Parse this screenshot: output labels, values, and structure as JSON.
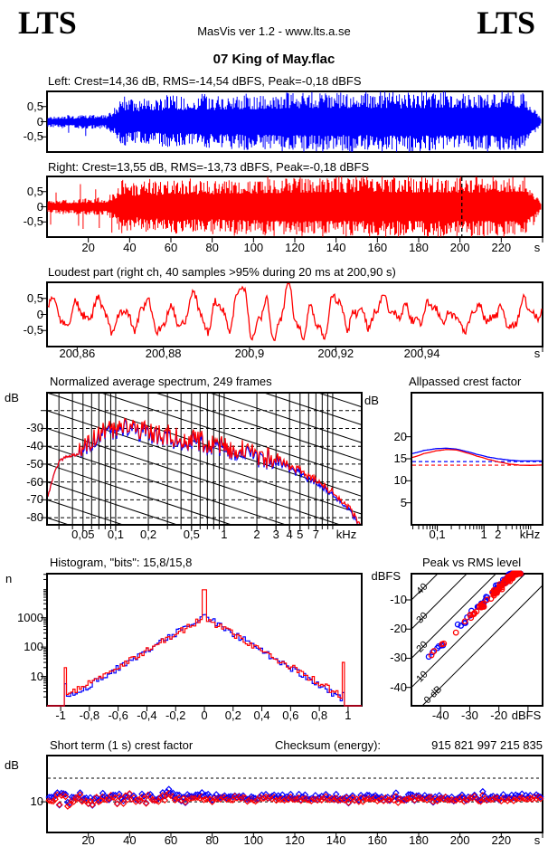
{
  "header": {
    "logo_left": "LTS",
    "logo_right": "LTS",
    "app_info": "MasVis ver 1.2 - www.lts.a.se"
  },
  "title": "07 King of May.flac",
  "colors": {
    "left_channel": "#0000ff",
    "right_channel": "#ff0000",
    "axis": "#000000",
    "background": "#ffffff"
  },
  "chart_data": [
    {
      "id": "wave_left",
      "type": "waveform",
      "channel": "left",
      "title": "Left: Crest=14,36 dB, RMS=-14,54 dBFS, Peak=-0,18 dBFS",
      "ylim": [
        -1,
        1
      ],
      "yticks": [
        [
          0.5,
          "0,5"
        ],
        [
          0,
          "0"
        ],
        [
          -0.5,
          "-0,5"
        ]
      ],
      "xlim_s": [
        0,
        240
      ],
      "envelope_t_step_s": 4,
      "envelope": [
        0.15,
        0.18,
        0.2,
        0.19,
        0.22,
        0.2,
        0.24,
        0.22,
        0.38,
        0.78,
        0.7,
        0.62,
        0.82,
        0.7,
        0.76,
        0.86,
        0.73,
        0.8,
        0.76,
        0.84,
        0.78,
        0.76,
        0.84,
        0.8,
        0.84,
        0.81,
        0.84,
        0.88,
        0.84,
        0.91,
        0.88,
        0.91,
        0.88,
        0.92,
        0.89,
        0.92,
        0.88,
        0.92,
        0.9,
        0.88,
        0.92,
        0.9,
        0.92,
        0.88,
        0.9,
        0.92,
        0.89,
        0.92,
        0.9,
        0.92,
        0.89,
        0.9,
        0.92,
        0.89,
        0.9,
        0.93,
        0.91,
        0.93,
        0.88,
        0.5,
        0.04
      ],
      "early_section_end_s": 33,
      "early_spike_p": 0.02,
      "early_spike_max": 0.6
    },
    {
      "id": "wave_right",
      "type": "waveform",
      "channel": "right",
      "title": "Right: Crest=13,55 dB, RMS=-13,73 dBFS, Peak=-0,18 dBFS",
      "ylim": [
        -1,
        1
      ],
      "yticks": [
        [
          0.5,
          "0,5"
        ],
        [
          0,
          "0"
        ],
        [
          -0.5,
          "-0,5"
        ]
      ],
      "xlim_s": [
        0,
        240
      ],
      "xticks": [
        [
          20,
          "20"
        ],
        [
          40,
          "40"
        ],
        [
          60,
          "60"
        ],
        [
          80,
          "80"
        ],
        [
          100,
          "100"
        ],
        [
          120,
          "120"
        ],
        [
          140,
          "140"
        ],
        [
          160,
          "160"
        ],
        [
          180,
          "180"
        ],
        [
          200,
          "200"
        ],
        [
          220,
          "220"
        ],
        [
          240,
          ""
        ]
      ],
      "x_unit_label": "s",
      "marker_time_s": 200.9,
      "envelope_t_step_s": 4,
      "envelope": [
        0.18,
        0.21,
        0.24,
        0.21,
        0.26,
        0.23,
        0.28,
        0.26,
        0.44,
        0.84,
        0.77,
        0.68,
        0.87,
        0.75,
        0.81,
        0.91,
        0.79,
        0.85,
        0.81,
        0.89,
        0.83,
        0.81,
        0.89,
        0.85,
        0.89,
        0.86,
        0.89,
        0.92,
        0.89,
        0.95,
        0.92,
        0.95,
        0.92,
        0.95,
        0.93,
        0.95,
        0.92,
        0.95,
        0.93,
        0.92,
        0.95,
        0.93,
        0.95,
        0.92,
        0.94,
        0.95,
        0.93,
        0.95,
        0.94,
        0.95,
        0.93,
        0.94,
        0.95,
        0.93,
        0.94,
        0.96,
        0.94,
        0.96,
        0.92,
        0.55,
        0.04
      ],
      "early_section_end_s": 33,
      "early_spike_p": 0.06,
      "early_spike_max": 0.95
    },
    {
      "id": "loudest_part",
      "type": "waveform_detail",
      "channel": "right",
      "title": "Loudest part (right ch, 40 samples >95% during 20 ms at 200,90 s)",
      "ylim": [
        -1,
        1
      ],
      "yticks": [
        [
          0.5,
          "0,5"
        ],
        [
          0,
          "0"
        ],
        [
          -0.5,
          "-0,5"
        ]
      ],
      "xlim_s": [
        200.853,
        200.968
      ],
      "xticks": [
        [
          200.86,
          "200,86"
        ],
        [
          200.88,
          "200,88"
        ],
        [
          200.9,
          "200,9"
        ],
        [
          200.92,
          "200,92"
        ],
        [
          200.94,
          "200,94"
        ]
      ],
      "x_unit_label": "s",
      "approx_amplitude": 0.45,
      "peak_swing_center_s": 200.909,
      "peak_swing_amplitude": 0.95
    },
    {
      "id": "spectrum",
      "type": "line",
      "title": "Normalized average spectrum, 249 frames",
      "ylabel": "dB",
      "ylim": [
        -84,
        -10
      ],
      "yticks": [
        [
          -20,
          ""
        ],
        [
          -30,
          "-30"
        ],
        [
          -40,
          "-40"
        ],
        [
          -50,
          "-50"
        ],
        [
          -60,
          "-60"
        ],
        [
          -70,
          "-70"
        ],
        [
          -80,
          "-80"
        ]
      ],
      "xlim_khz": [
        0.0233,
        18.5
      ],
      "xticks": [
        [
          0.05,
          "0,05"
        ],
        [
          0.1,
          "0,1"
        ],
        [
          0.2,
          "0,2"
        ],
        [
          0.5,
          "0,5"
        ],
        [
          1,
          "1"
        ],
        [
          2,
          "2"
        ],
        [
          3,
          "3"
        ],
        [
          4,
          "4"
        ],
        [
          5,
          "5"
        ],
        [
          7,
          "7"
        ]
      ],
      "x_unit_label": "kHz",
      "grid_diagonal_slope_db_per_decade": -20,
      "anchors_khz_db": [
        [
          0.023,
          -69
        ],
        [
          0.026,
          -57
        ],
        [
          0.03,
          -48
        ],
        [
          0.035,
          -45.5
        ],
        [
          0.045,
          -44.5
        ],
        [
          0.055,
          -40
        ],
        [
          0.065,
          -34
        ],
        [
          0.08,
          -30
        ],
        [
          0.095,
          -31
        ],
        [
          0.11,
          -27.5
        ],
        [
          0.14,
          -30
        ],
        [
          0.18,
          -32
        ],
        [
          0.25,
          -34
        ],
        [
          0.35,
          -35
        ],
        [
          0.5,
          -37
        ],
        [
          0.7,
          -38
        ],
        [
          1.0,
          -40
        ],
        [
          1.4,
          -43
        ],
        [
          2.0,
          -46
        ],
        [
          2.8,
          -47
        ],
        [
          3.2,
          -47
        ],
        [
          4.0,
          -51
        ],
        [
          5.0,
          -54
        ],
        [
          6.0,
          -57
        ],
        [
          7.0,
          -60
        ],
        [
          8.5,
          -63
        ],
        [
          10,
          -66
        ],
        [
          12,
          -70
        ],
        [
          14,
          -74
        ],
        [
          16,
          -79
        ],
        [
          18.5,
          -86
        ]
      ],
      "jitter_db_mid": 6,
      "jitter_db_hi": 1.5
    },
    {
      "id": "allpassed_crest",
      "type": "line",
      "title": "Allpassed crest factor",
      "ylabel": "dB",
      "ylim": [
        0,
        30
      ],
      "yticks": [
        [
          20,
          "20"
        ],
        [
          15,
          "15"
        ],
        [
          10,
          "10"
        ],
        [
          5,
          "5"
        ]
      ],
      "xlim_khz": [
        0.028,
        18
      ],
      "xticks": [
        [
          0.1,
          "0,1"
        ],
        [
          1,
          "1"
        ],
        [
          2,
          "2"
        ]
      ],
      "x_unit_label": "kHz",
      "series": [
        {
          "name": "left",
          "color": "#0000ff",
          "anchors_khz_db": [
            [
              0.028,
              16.2
            ],
            [
              0.05,
              16.9
            ],
            [
              0.09,
              17.3
            ],
            [
              0.15,
              17.4
            ],
            [
              0.25,
              17.2
            ],
            [
              0.4,
              16.7
            ],
            [
              0.7,
              16.0
            ],
            [
              1.2,
              15.4
            ],
            [
              2,
              15.0
            ],
            [
              3.5,
              14.7
            ],
            [
              6,
              14.5
            ],
            [
              10,
              14.5
            ],
            [
              18,
              14.5
            ]
          ],
          "reference_dashed_db": 14.36
        },
        {
          "name": "right",
          "color": "#ff0000",
          "anchors_khz_db": [
            [
              0.028,
              15.3
            ],
            [
              0.05,
              16.2
            ],
            [
              0.09,
              16.8
            ],
            [
              0.15,
              17.1
            ],
            [
              0.25,
              17.0
            ],
            [
              0.4,
              16.4
            ],
            [
              0.7,
              15.6
            ],
            [
              1.2,
              14.9
            ],
            [
              2,
              14.3
            ],
            [
              3.5,
              13.8
            ],
            [
              6,
              13.55
            ],
            [
              10,
              13.5
            ],
            [
              18,
              13.6
            ]
          ],
          "reference_dashed_db": 13.55
        }
      ]
    },
    {
      "id": "histogram",
      "type": "histogram",
      "title": "Histogram, \"bits\": 15,8/15,8",
      "ylabel": "n",
      "ylog_lim": [
        0,
        4.5
      ],
      "yticks": [
        [
          1000,
          "1000"
        ],
        [
          100,
          "100"
        ],
        [
          10,
          "10"
        ]
      ],
      "xlim": [
        -1.095,
        1.095
      ],
      "xticks": [
        [
          -1,
          "-1"
        ],
        [
          -0.8,
          "-0,8"
        ],
        [
          -0.6,
          "-0,6"
        ],
        [
          -0.4,
          "-0,4"
        ],
        [
          -0.2,
          "-0,2"
        ],
        [
          0,
          "0"
        ],
        [
          0.2,
          "0,2"
        ],
        [
          0.4,
          "0,4"
        ],
        [
          0.6,
          "0,6"
        ],
        [
          0.8,
          "0,8"
        ],
        [
          1,
          "1"
        ]
      ],
      "bin_width": 0.015,
      "edge_pos": 0.968,
      "series": [
        {
          "name": "left",
          "color": "#0000ff",
          "center_log": 3.06,
          "slope_log_per_unit": 2.95,
          "edge_left_log": 0.75,
          "edge_right_log": 0.45
        },
        {
          "name": "right",
          "color": "#ff0000",
          "center_log": 3.0,
          "slope_log_per_unit": 2.78,
          "edge_left_log": 1.3,
          "edge_right_log": 1.48,
          "center_spike_log": 3.95
        }
      ]
    },
    {
      "id": "peak_vs_rms",
      "type": "scatter",
      "title": "Peak vs RMS level",
      "ylabel": "dBFS",
      "ylim": [
        -46.3,
        -1
      ],
      "yticks": [
        [
          -10,
          "-10"
        ],
        [
          -20,
          "-20"
        ],
        [
          -30,
          "-30"
        ],
        [
          -40,
          "-40"
        ]
      ],
      "xlim": [
        -50,
        -5
      ],
      "xticks": [
        [
          -40,
          "-40"
        ],
        [
          -30,
          "-30"
        ],
        [
          -20,
          "-20"
        ],
        [
          -10,
          ""
        ]
      ],
      "x_unit_label": "dBFS",
      "diagonals": [
        [
          50,
          ""
        ],
        [
          40,
          "40"
        ],
        [
          30,
          "30"
        ],
        [
          20,
          "20"
        ],
        [
          10,
          "10"
        ],
        [
          0,
          "0 dB"
        ]
      ],
      "scatter_summary": {
        "points_per_channel": 115,
        "blue_crest_mean_db": 14.6,
        "red_crest_mean_db": 13.8,
        "crest_sd_db": 1.1,
        "rms_range_dbfs": [
          -47,
          -11
        ],
        "peak_max_dbfs": -0.18
      }
    },
    {
      "id": "short_term_crest",
      "type": "scatter",
      "title": "Short term (1 s) crest factor",
      "checksum_label": "Checksum (energy):",
      "checksum_value": "915 821 997 215 835",
      "ylabel": "dB",
      "ylim": [
        3.5,
        19.8
      ],
      "yticks": [
        [
          10,
          "10"
        ]
      ],
      "dashed_ref_db": [
        10,
        15
      ],
      "xlim_s": [
        0,
        240
      ],
      "xticks": [
        [
          20,
          "20"
        ],
        [
          40,
          "40"
        ],
        [
          60,
          "60"
        ],
        [
          80,
          "80"
        ],
        [
          100,
          "100"
        ],
        [
          120,
          "120"
        ],
        [
          140,
          "140"
        ],
        [
          160,
          "160"
        ],
        [
          180,
          "180"
        ],
        [
          200,
          "200"
        ],
        [
          220,
          "220"
        ],
        [
          240,
          ""
        ]
      ],
      "x_unit_label": "s",
      "scatter_summary": {
        "typical_db": 11,
        "spread_db": 0.9,
        "early_end_s": 62,
        "early_extra_spread_db": 1.8,
        "range_db": [
          8.3,
          14.3
        ]
      }
    }
  ]
}
